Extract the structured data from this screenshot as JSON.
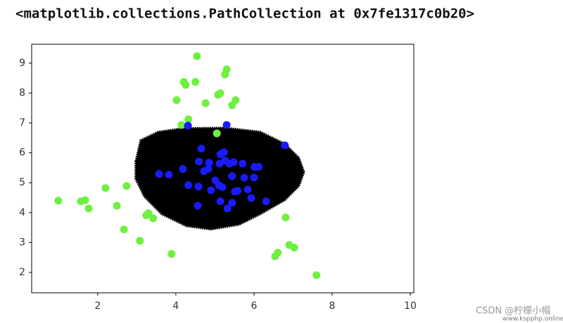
{
  "output_text": "<matplotlib.collections.PathCollection at 0x7fe1317c0b20>",
  "watermark": "CSDN @柠檬小帽",
  "watermark_site": "www.kspphp.online",
  "chart_data": {
    "type": "scatter",
    "xlim": [
      0.31,
      10.09
    ],
    "ylim": [
      1.32,
      9.63
    ],
    "xticks": [
      2,
      4,
      6,
      8,
      10
    ],
    "yticks": [
      2,
      3,
      4,
      5,
      6,
      7,
      8,
      9
    ],
    "series": [
      {
        "shape": "area",
        "color": "#000000",
        "x": [
          2.97,
          3.1,
          3.55,
          4.18,
          5.26,
          6.16,
          6.79,
          7.15,
          7.28,
          7.15,
          6.79,
          6.16,
          5.62,
          4.9,
          4.27,
          3.64,
          3.19,
          2.97
        ],
        "values": [
          5.71,
          6.42,
          6.7,
          6.82,
          6.84,
          6.7,
          6.3,
          5.83,
          5.36,
          4.89,
          4.42,
          3.95,
          3.6,
          3.44,
          3.55,
          3.95,
          4.54,
          5.13
        ]
      },
      {
        "shape": "points",
        "color": "#6ef03e",
        "x": [
          0.99,
          1.57,
          1.68,
          1.77,
          2.2,
          2.74,
          2.49,
          2.67,
          3.08,
          3.24,
          3.3,
          3.42,
          3.89,
          4.02,
          4.2,
          4.25,
          4.5,
          4.54,
          4.32,
          4.14,
          4.76,
          5.05,
          5.08,
          5.14,
          5.26,
          5.3,
          5.44,
          5.53,
          6.81,
          6.54,
          6.61,
          6.9,
          7.03,
          7.6
        ],
        "values": [
          4.4,
          4.38,
          4.42,
          4.14,
          4.82,
          4.89,
          4.23,
          3.44,
          3.06,
          3.91,
          3.98,
          3.81,
          2.62,
          7.76,
          8.37,
          8.27,
          8.37,
          9.23,
          7.12,
          6.93,
          7.66,
          6.65,
          7.94,
          7.99,
          8.62,
          8.79,
          7.59,
          7.76,
          3.84,
          2.54,
          2.66,
          2.92,
          2.83,
          1.91
        ]
      },
      {
        "shape": "points",
        "color": "#1a1aff",
        "x": [
          4.31,
          5.3,
          6.79,
          4.65,
          5.14,
          5.23,
          4.59,
          4.85,
          5.12,
          5.26,
          5.37,
          5.48,
          5.71,
          6.01,
          6.12,
          4.18,
          4.72,
          4.83,
          3.82,
          3.57,
          5.44,
          5.75,
          6.0,
          4.32,
          4.58,
          5.01,
          5.1,
          5.19,
          4.9,
          5.51,
          5.58,
          5.84,
          5.93,
          6.31,
          5.14,
          5.44,
          5.32,
          4.56
        ],
        "values": [
          6.91,
          6.93,
          6.25,
          6.14,
          5.95,
          6.02,
          5.71,
          5.67,
          5.64,
          5.74,
          5.64,
          5.69,
          5.64,
          5.53,
          5.53,
          5.46,
          5.39,
          5.46,
          5.27,
          5.29,
          5.22,
          5.17,
          5.17,
          4.92,
          4.87,
          5.08,
          4.92,
          4.85,
          4.75,
          4.7,
          4.73,
          4.77,
          4.49,
          4.38,
          4.38,
          4.33,
          4.14,
          4.23
        ]
      }
    ]
  }
}
